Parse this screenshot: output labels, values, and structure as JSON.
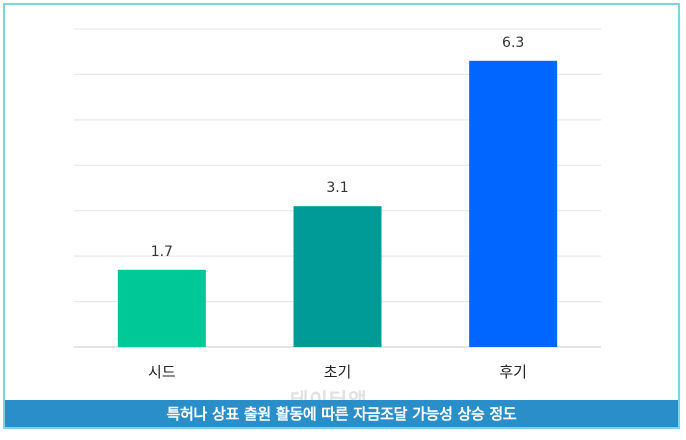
{
  "chart_data": {
    "type": "bar",
    "categories": [
      "시드",
      "초기",
      "후기"
    ],
    "values": [
      1.7,
      3.1,
      6.3
    ],
    "data_labels": [
      "1.7",
      "3.1",
      "6.3"
    ],
    "colors": [
      "#00c896",
      "#009b96",
      "#0066ff"
    ],
    "ylim": [
      0,
      7
    ],
    "grid": true,
    "legend": "none"
  },
  "caption": "특허나 상표 출원 활동에 따른 자금조달 가능성 상승 정도",
  "watermark": "테이터앱"
}
